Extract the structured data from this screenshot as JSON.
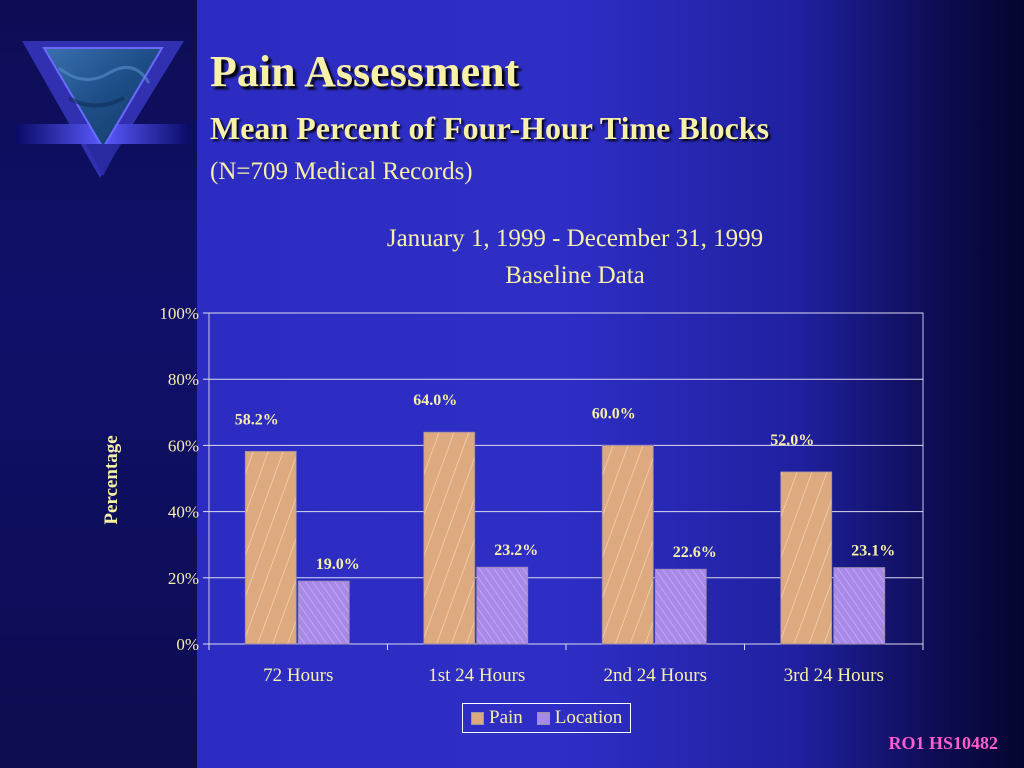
{
  "slide": {
    "title": "Pain Assessment",
    "subtitle": "Mean Percent of Four-Hour Time Blocks",
    "note": "(N=709 Medical Records)",
    "footer": "RO1 HS10482"
  },
  "colors": {
    "text": "#f7f0a8",
    "pain_bar": "#dda97f",
    "location_bar": "#a889e8",
    "footer": "#ff5ed0"
  },
  "chart_data": {
    "type": "bar",
    "title": "January 1, 1999 - December 31, 1999",
    "subtitle": "Baseline Data",
    "xlabel": "",
    "ylabel": "Percentage",
    "categories": [
      "72 Hours",
      "1st 24 Hours",
      "2nd 24 Hours",
      "3rd 24 Hours"
    ],
    "series": [
      {
        "name": "Pain",
        "values": [
          58.2,
          64.0,
          60.0,
          52.0
        ],
        "labels": [
          "58.2%",
          "64.0%",
          "60.0%",
          "52.0%"
        ]
      },
      {
        "name": "Location",
        "values": [
          19.0,
          23.2,
          22.6,
          23.1
        ],
        "labels": [
          "19.0%",
          "23.2%",
          "22.6%",
          "23.1%"
        ]
      }
    ],
    "ylim": [
      0,
      100
    ],
    "yticks": [
      "0%",
      "20%",
      "40%",
      "60%",
      "80%",
      "100%"
    ],
    "grid": true,
    "legend_position": "bottom"
  }
}
